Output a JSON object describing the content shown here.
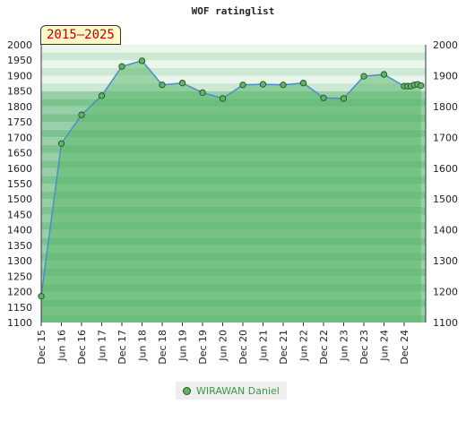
{
  "chart_data": {
    "type": "area",
    "title": "WOF ratinglist",
    "badge": "2015–2025",
    "ylim": [
      1100,
      2000
    ],
    "y_ticks": [
      1100,
      1150,
      1200,
      1250,
      1300,
      1350,
      1400,
      1450,
      1500,
      1550,
      1600,
      1650,
      1700,
      1750,
      1800,
      1850,
      1900,
      1950,
      2000
    ],
    "y_ticks_right": [
      1100,
      1200,
      1300,
      1400,
      1500,
      1600,
      1700,
      1800,
      1900,
      2000
    ],
    "x_ticks": [
      "Dec 15",
      "Jun 16",
      "Dec 16",
      "Jun 17",
      "Dec 17",
      "Jun 18",
      "Dec 18",
      "Jun 19",
      "Dec 19",
      "Jun 20",
      "Dec 20",
      "Jun 21",
      "Dec 21",
      "Jun 22",
      "Dec 22",
      "Jun 23",
      "Dec 23",
      "Jun 24",
      "Dec 24"
    ],
    "grid": true,
    "legend_position": "bottom",
    "series": [
      {
        "name": "WIRAWAN Daniel",
        "color": "#5fb564",
        "points": [
          {
            "x": "2015-12",
            "y": 1185
          },
          {
            "x": "2016-06",
            "y": 1680
          },
          {
            "x": "2016-12",
            "y": 1773
          },
          {
            "x": "2017-06",
            "y": 1835
          },
          {
            "x": "2017-12",
            "y": 1930
          },
          {
            "x": "2018-06",
            "y": 1948
          },
          {
            "x": "2018-12",
            "y": 1870
          },
          {
            "x": "2019-06",
            "y": 1876
          },
          {
            "x": "2019-12",
            "y": 1845
          },
          {
            "x": "2020-06",
            "y": 1826
          },
          {
            "x": "2020-12",
            "y": 1870
          },
          {
            "x": "2021-06",
            "y": 1872
          },
          {
            "x": "2021-12",
            "y": 1870
          },
          {
            "x": "2022-06",
            "y": 1876
          },
          {
            "x": "2022-12",
            "y": 1828
          },
          {
            "x": "2023-06",
            "y": 1826
          },
          {
            "x": "2023-12",
            "y": 1898
          },
          {
            "x": "2024-06",
            "y": 1904
          },
          {
            "x": "2024-12",
            "y": 1866
          },
          {
            "x": "2025-01",
            "y": 1866
          },
          {
            "x": "2025-02",
            "y": 1866
          },
          {
            "x": "2025-03",
            "y": 1870
          },
          {
            "x": "2025-04",
            "y": 1872
          },
          {
            "x": "2025-05",
            "y": 1868
          }
        ]
      }
    ]
  }
}
